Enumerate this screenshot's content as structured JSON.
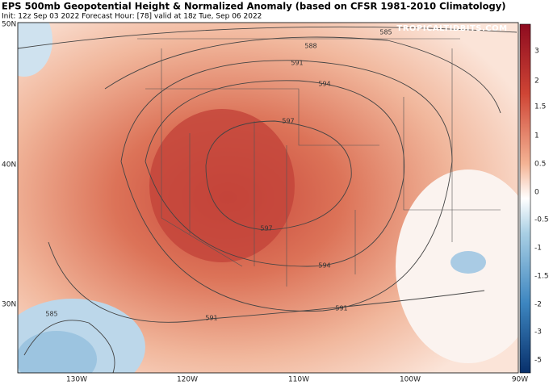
{
  "header": {
    "title": "EPS 500mb Geopotential Height & Normalized Anomaly (based on CFSR 1981-2010 Climatology)",
    "subtitle": "Init: 12z Sep 03 2022   Forecast Hour: [78]   valid at 18z Tue, Sep 06 2022",
    "watermark": "TROPICALTIDBITS.COM"
  },
  "latitude_labels": [
    "50N",
    "40N",
    "30N"
  ],
  "longitude_labels": [
    "130W",
    "120W",
    "110W",
    "100W",
    "90W"
  ],
  "colorbar": {
    "labels": [
      "3",
      "2",
      "1.5",
      "1",
      "0.5",
      "0",
      "-0.5",
      "-1",
      "-1.5",
      "-2",
      "-3",
      "-5"
    ]
  },
  "contour_labels": [
    "585",
    "588",
    "591",
    "594",
    "597",
    "597",
    "594",
    "591",
    "591",
    "585"
  ]
}
